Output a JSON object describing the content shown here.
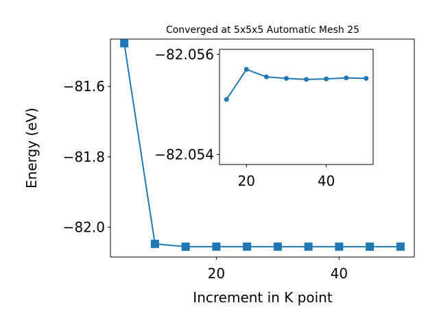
{
  "chart_data": [
    {
      "type": "line",
      "title": "Converged at 5x5x5 Automatic Mesh 25",
      "xlabel": "Increment in K point",
      "ylabel": "Energy (eV)",
      "color": "#1f77b4",
      "marker": "square",
      "grid": false,
      "xlim": [
        2.75,
        52.25
      ],
      "ylim": [
        -82.085,
        -81.465
      ],
      "xticks": [
        20,
        40
      ],
      "xtick_labels": [
        "20",
        "40"
      ],
      "yticks": [
        -81.6,
        -81.8,
        -82.0
      ],
      "ytick_labels": [
        "−81.6",
        "−81.8",
        "−82.0"
      ],
      "series": [
        {
          "x": [
            5,
            10,
            15,
            20,
            25,
            30,
            35,
            40,
            45,
            50
          ],
          "values": [
            -81.477,
            -82.0475,
            -82.0556,
            -82.0554,
            -82.0554,
            -82.0554,
            -82.0554,
            -82.0554,
            -82.0554,
            -82.0554
          ]
        }
      ]
    },
    {
      "type": "line",
      "title": "",
      "xlabel": "",
      "ylabel": "",
      "color": "#1f77b4",
      "marker": "circle",
      "grid": false,
      "xlim": [
        13.25,
        51.75
      ],
      "ylim": [
        -82.0538,
        -82.0561
      ],
      "xticks": [
        20,
        40
      ],
      "xtick_labels": [
        "20",
        "40"
      ],
      "yticks": [
        -82.056,
        -82.054
      ],
      "ytick_labels": [
        "−82.056",
        "−82.054"
      ],
      "series": [
        {
          "x": [
            15,
            20,
            25,
            30,
            35,
            40,
            45,
            50
          ],
          "values": [
            -82.0551,
            -82.0557,
            -82.05555,
            -82.05552,
            -82.0555,
            -82.05551,
            -82.05553,
            -82.05552
          ]
        }
      ]
    }
  ]
}
